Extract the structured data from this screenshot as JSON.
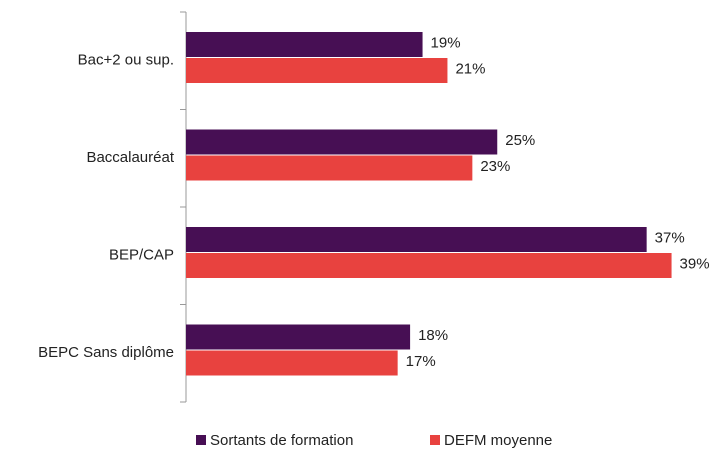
{
  "chart_data": {
    "type": "hbar",
    "categories": [
      "Bac+2 ou sup.",
      "Baccalauréat",
      "BEP/CAP",
      "BEPC Sans diplôme"
    ],
    "series": [
      {
        "name": "Sortants de formation",
        "color": "#470f54",
        "values": [
          19,
          25,
          37,
          18
        ],
        "value_labels": [
          "19%",
          "25%",
          "37%",
          "18%"
        ]
      },
      {
        "name": "DEFM moyenne",
        "color": "#e8423f",
        "values": [
          21,
          23,
          39,
          17
        ],
        "value_labels": [
          "21%",
          "23%",
          "39%",
          "17%"
        ]
      }
    ],
    "xlim": [
      0,
      40
    ],
    "legend": "bottom"
  }
}
